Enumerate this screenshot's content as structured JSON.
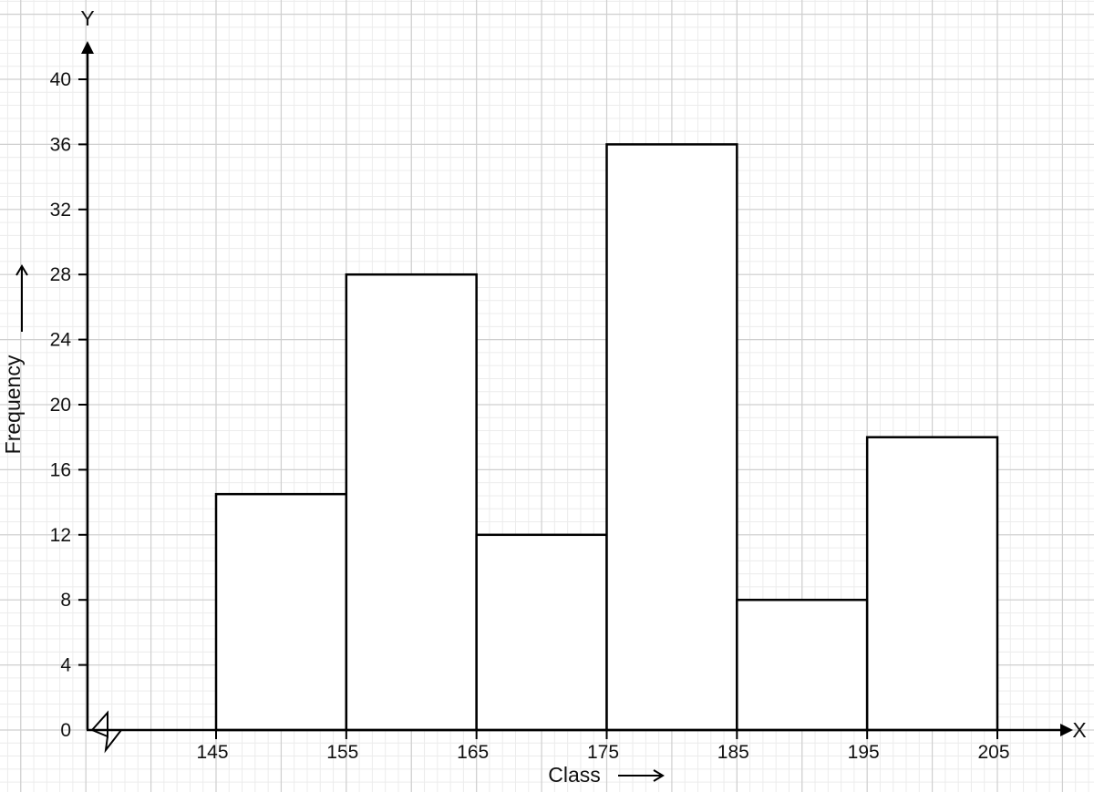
{
  "chart_data": {
    "type": "bar",
    "histogram": true,
    "bins": [
      {
        "from": 145,
        "to": 155,
        "value": 14.5
      },
      {
        "from": 155,
        "to": 165,
        "value": 28
      },
      {
        "from": 165,
        "to": 175,
        "value": 12
      },
      {
        "from": 175,
        "to": 185,
        "value": 36
      },
      {
        "from": 185,
        "to": 195,
        "value": 8
      },
      {
        "from": 195,
        "to": 205,
        "value": 18
      }
    ],
    "x_ticks": [
      "145",
      "155",
      "165",
      "175",
      "185",
      "195",
      "205"
    ],
    "y_ticks": [
      "0",
      "4",
      "8",
      "12",
      "16",
      "20",
      "24",
      "28",
      "32",
      "36",
      "40"
    ],
    "xlim": [
      145,
      205
    ],
    "ylim": [
      0,
      40
    ],
    "xlabel": "Class",
    "ylabel": "Frequency",
    "x_axis_letter": "X",
    "y_axis_letter": "Y",
    "axis_break_on_x": true,
    "grid": true,
    "grid_style": "graph paper",
    "colors": {
      "bar_fill": "#ffffff",
      "bar_stroke": "#000000",
      "grid_major": "#cfcfcf",
      "grid_minor": "#ececec",
      "axis": "#000000"
    }
  }
}
